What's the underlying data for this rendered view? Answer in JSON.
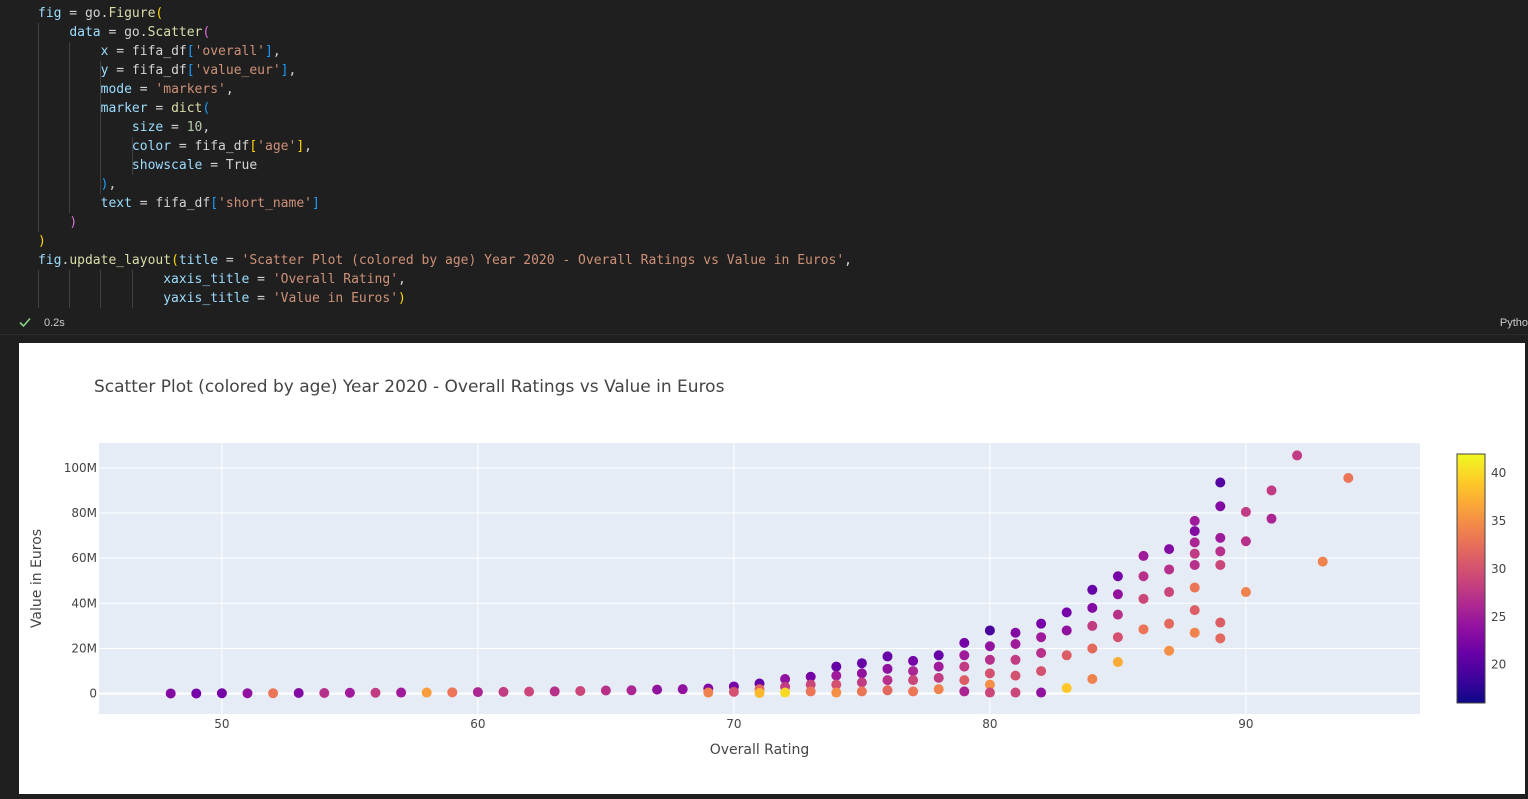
{
  "code": {
    "lines": [
      [
        [
          "var",
          "fig"
        ],
        [
          "kw",
          " = go."
        ],
        [
          "fn",
          "Figure"
        ],
        [
          "br1",
          "("
        ]
      ],
      [
        [
          "kw",
          "    "
        ],
        [
          "var",
          "data"
        ],
        [
          "kw",
          " = go."
        ],
        [
          "fn",
          "Scatter"
        ],
        [
          "br2",
          "("
        ]
      ],
      [
        [
          "kw",
          "        "
        ],
        [
          "var",
          "x"
        ],
        [
          "kw",
          " = fifa_df"
        ],
        [
          "br3",
          "["
        ],
        [
          "str",
          "'overall'"
        ],
        [
          "br3",
          "]"
        ],
        [
          "kw",
          ","
        ]
      ],
      [
        [
          "kw",
          "        "
        ],
        [
          "var",
          "y"
        ],
        [
          "kw",
          " = fifa_df"
        ],
        [
          "br3",
          "["
        ],
        [
          "str",
          "'value_eur'"
        ],
        [
          "br3",
          "]"
        ],
        [
          "kw",
          ","
        ]
      ],
      [
        [
          "kw",
          "        "
        ],
        [
          "var",
          "mode"
        ],
        [
          "kw",
          " = "
        ],
        [
          "str",
          "'markers'"
        ],
        [
          "kw",
          ","
        ]
      ],
      [
        [
          "kw",
          "        "
        ],
        [
          "var",
          "marker"
        ],
        [
          "kw",
          " = "
        ],
        [
          "fn",
          "dict"
        ],
        [
          "br3",
          "("
        ]
      ],
      [
        [
          "kw",
          "            "
        ],
        [
          "var",
          "size"
        ],
        [
          "kw",
          " = "
        ],
        [
          "num",
          "10"
        ],
        [
          "kw",
          ","
        ]
      ],
      [
        [
          "kw",
          "            "
        ],
        [
          "var",
          "color"
        ],
        [
          "kw",
          " = fifa_df"
        ],
        [
          "br1",
          "["
        ],
        [
          "str",
          "'age'"
        ],
        [
          "br1",
          "]"
        ],
        [
          "kw",
          ","
        ]
      ],
      [
        [
          "kw",
          "            "
        ],
        [
          "var",
          "showscale"
        ],
        [
          "kw",
          " = "
        ],
        [
          "bool",
          "True"
        ]
      ],
      [
        [
          "kw",
          "        "
        ],
        [
          "br3",
          ")"
        ],
        [
          "kw",
          ","
        ]
      ],
      [
        [
          "kw",
          "        "
        ],
        [
          "var",
          "text"
        ],
        [
          "kw",
          " = fifa_df"
        ],
        [
          "br3",
          "["
        ],
        [
          "str",
          "'short_name'"
        ],
        [
          "br3",
          "]"
        ]
      ],
      [
        [
          "kw",
          "    "
        ],
        [
          "br2",
          ")"
        ]
      ],
      [
        [
          "br1",
          ")"
        ]
      ],
      [
        [
          "var",
          "fig"
        ],
        [
          "kw",
          "."
        ],
        [
          "fn",
          "update_layout"
        ],
        [
          "br1",
          "("
        ],
        [
          "var",
          "title"
        ],
        [
          "kw",
          " = "
        ],
        [
          "str",
          "'Scatter Plot (colored by age) Year 2020 - Overall Ratings vs Value in Euros'"
        ],
        [
          "kw",
          ","
        ]
      ],
      [
        [
          "kw",
          "                "
        ],
        [
          "var",
          "xaxis_title"
        ],
        [
          "kw",
          " = "
        ],
        [
          "str",
          "'Overall Rating'"
        ],
        [
          "kw",
          ","
        ]
      ],
      [
        [
          "kw",
          "                "
        ],
        [
          "var",
          "yaxis_title"
        ],
        [
          "kw",
          " = "
        ],
        [
          "str",
          "'Value in Euros'"
        ],
        [
          "br1",
          ")"
        ]
      ]
    ]
  },
  "status": {
    "exec_time": "0.2s",
    "kernel": "Pytho",
    "check_icon": "check-icon",
    "check_color": "#89d185"
  },
  "chart_data": {
    "type": "scatter",
    "title": "Scatter Plot (colored by age) Year 2020 - Overall Ratings vs Value in Euros",
    "xlabel": "Overall Rating",
    "ylabel": "Value in Euros",
    "xlim": [
      45.2,
      96.8
    ],
    "ylim": [
      -9,
      111
    ],
    "xticks": [
      50,
      60,
      70,
      80,
      90
    ],
    "xtick_labels": [
      "50",
      "60",
      "70",
      "80",
      "90"
    ],
    "yticks": [
      0,
      20,
      40,
      60,
      80,
      100
    ],
    "ytick_labels": [
      "0",
      "20M",
      "40M",
      "60M",
      "80M",
      "100M"
    ],
    "colorbar": {
      "range": [
        16,
        42
      ],
      "ticks": [
        20,
        25,
        30,
        35,
        40
      ],
      "tick_labels": [
        "20",
        "25",
        "30",
        "35",
        "40"
      ],
      "colorscale": "plasma"
    },
    "grid": true,
    "series": [
      {
        "x": [
          48,
          49,
          50,
          51,
          52,
          53,
          54,
          55,
          56,
          57,
          58,
          59,
          60,
          61,
          62,
          63,
          64,
          65,
          66,
          67,
          68,
          69,
          69,
          70,
          70,
          71,
          71,
          71,
          72,
          72,
          72,
          73,
          73,
          73,
          74,
          74,
          74,
          74,
          75,
          75,
          75,
          75,
          76,
          76,
          76,
          76,
          77,
          77,
          77,
          77,
          78,
          78,
          78,
          78,
          79,
          79,
          79,
          79,
          79,
          80,
          80,
          80,
          80,
          80,
          80,
          81,
          81,
          81,
          81,
          81,
          82,
          82,
          82,
          82,
          82,
          83,
          83,
          83,
          83,
          84,
          84,
          84,
          84,
          84,
          85,
          85,
          85,
          85,
          85,
          86,
          86,
          86,
          86,
          87,
          87,
          87,
          87,
          87,
          88,
          88,
          88,
          88,
          88,
          88,
          88,
          88,
          89,
          89,
          89,
          89,
          89,
          89,
          89,
          90,
          90,
          90,
          91,
          91,
          92,
          93,
          94
        ],
        "y": [
          0.1,
          0.1,
          0.2,
          0.2,
          0.2,
          0.3,
          0.3,
          0.4,
          0.4,
          0.5,
          0.5,
          0.6,
          0.7,
          0.8,
          0.9,
          1.0,
          1.2,
          1.4,
          1.5,
          1.8,
          2.0,
          2.3,
          0.5,
          3.2,
          0.8,
          4.5,
          2.0,
          0.3,
          6.5,
          3.0,
          0.5,
          7.5,
          4.0,
          1.0,
          12.0,
          8.0,
          4.0,
          0.5,
          13.5,
          9.0,
          5.0,
          1.0,
          16.5,
          11.0,
          6.0,
          1.5,
          14.5,
          10.0,
          6.0,
          1.0,
          17.0,
          12.0,
          7.0,
          2.0,
          22.5,
          17.0,
          12.0,
          6.0,
          1.0,
          28.0,
          21.0,
          15.0,
          9.0,
          4.0,
          0.5,
          27.0,
          22.0,
          15.0,
          8.0,
          0.5,
          31.0,
          25.0,
          18.0,
          10.0,
          0.5,
          36.0,
          28.0,
          17.0,
          2.5,
          46.0,
          38.0,
          30.0,
          20.0,
          6.5,
          52.0,
          44.0,
          35.0,
          25.0,
          14.0,
          61.0,
          52.0,
          42.0,
          28.5,
          64.0,
          55.0,
          45.0,
          31.0,
          19.0,
          76.5,
          72.0,
          67.0,
          62.0,
          57.0,
          47.0,
          37.0,
          27.0,
          93.5,
          83.0,
          69.0,
          63.0,
          57.0,
          31.5,
          24.5,
          80.5,
          67.5,
          45.0,
          90.0,
          77.5,
          105.5,
          58.5,
          95.5
        ],
        "color": [
          23,
          22,
          22,
          24,
          33,
          23,
          27,
          25,
          28,
          25,
          36,
          33,
          26,
          28,
          29,
          27,
          29,
          27,
          26,
          24,
          24,
          23,
          34,
          22,
          30,
          21,
          32,
          38,
          24,
          28,
          40,
          22,
          29,
          33,
          21,
          25,
          30,
          35,
          21,
          24,
          28,
          33,
          21,
          24,
          27,
          32,
          22,
          26,
          29,
          33,
          21,
          25,
          28,
          34,
          22,
          25,
          28,
          31,
          26,
          19,
          24,
          27,
          30,
          35,
          29,
          23,
          25,
          28,
          30,
          29,
          22,
          25,
          27,
          30,
          24,
          22,
          24,
          31,
          39,
          21,
          23,
          28,
          32,
          34,
          22,
          24,
          27,
          30,
          37,
          25,
          27,
          29,
          33,
          23,
          27,
          29,
          32,
          35,
          25,
          23,
          26,
          28,
          27,
          33,
          31,
          34,
          20,
          23,
          25,
          27,
          29,
          31,
          32,
          28,
          27,
          34,
          28,
          26,
          28,
          34,
          33
        ]
      }
    ]
  }
}
